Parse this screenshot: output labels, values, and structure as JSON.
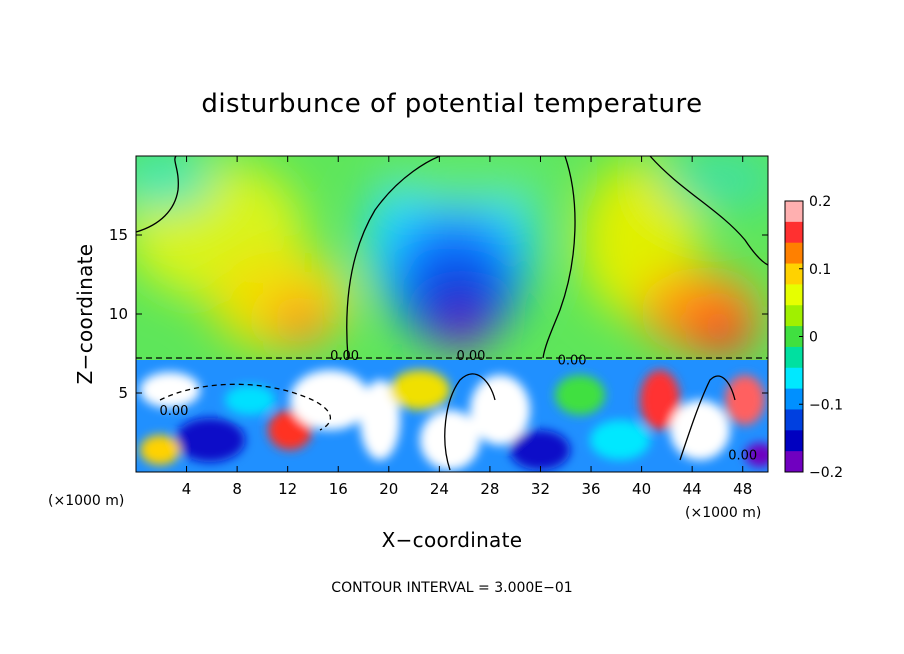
{
  "chart_data": {
    "type": "heatmap",
    "title": "disturbunce of potential temperature",
    "xlabel": "X−coordinate",
    "ylabel": "Z−coordinate",
    "x_unit_label": "(×1000 m)",
    "y_unit_label": "(×1000 m)",
    "xlim": [
      0,
      50
    ],
    "ylim": [
      0,
      20
    ],
    "x_ticks": [
      4,
      8,
      12,
      16,
      20,
      24,
      28,
      32,
      36,
      40,
      44,
      48
    ],
    "x_tick_labels": [
      "4",
      "8",
      "12",
      "16",
      "20",
      "24",
      "28",
      "32",
      "36",
      "40",
      "44",
      "48"
    ],
    "y_ticks": [
      5,
      10,
      15
    ],
    "y_tick_labels": [
      "5",
      "10",
      "15"
    ],
    "footer": "CONTOUR INTERVAL = 3.000E−01",
    "colorbar": {
      "range": [
        -0.2,
        0.2
      ],
      "ticks": [
        0.2,
        0.1,
        0,
        -0.1,
        -0.2
      ],
      "tick_labels": [
        "0.2",
        "0.1",
        "0",
        "−0.1",
        "−0.2"
      ],
      "colors": [
        "#ffb0b0",
        "#ff3030",
        "#ff8000",
        "#ffd200",
        "#e6ff00",
        "#a0f000",
        "#40e040",
        "#00e0a0",
        "#00e8ff",
        "#0090ff",
        "#0040e0",
        "#0000c0",
        "#7000c0"
      ]
    },
    "contour_labels": [
      {
        "x": 16.5,
        "z": 7.1,
        "text": "0.00"
      },
      {
        "x": 26.5,
        "z": 7.1,
        "text": "0.00"
      },
      {
        "x": 34.5,
        "z": 6.8,
        "text": "0.00"
      },
      {
        "x": 3.0,
        "z": 3.6,
        "text": "0.00"
      },
      {
        "x": 48.0,
        "z": 0.8,
        "text": "0.00"
      }
    ],
    "fields": {
      "upper_region": [
        {
          "x": 2,
          "z": 18,
          "value": -0.02
        },
        {
          "x": 10,
          "z": 17,
          "value": 0.04
        },
        {
          "x": 14,
          "z": 10,
          "value": 0.1
        },
        {
          "x": 22,
          "z": 16,
          "value": 0.0
        },
        {
          "x": 24,
          "z": 12,
          "value": -0.14
        },
        {
          "x": 25.5,
          "z": 9,
          "value": -0.2
        },
        {
          "x": 29,
          "z": 15,
          "value": -0.06
        },
        {
          "x": 38,
          "z": 15,
          "value": 0.07
        },
        {
          "x": 45,
          "z": 9,
          "value": 0.13
        },
        {
          "x": 47,
          "z": 18,
          "value": 0.0
        }
      ],
      "lower_region_note_free": [
        {
          "x": 5,
          "z": 4,
          "value": -0.1
        },
        {
          "x": 20,
          "z": 5,
          "value": 0.2
        },
        {
          "x": 34,
          "z": 3,
          "value": -0.12
        },
        {
          "x": 44,
          "z": 2,
          "value": 0.15
        }
      ]
    }
  }
}
